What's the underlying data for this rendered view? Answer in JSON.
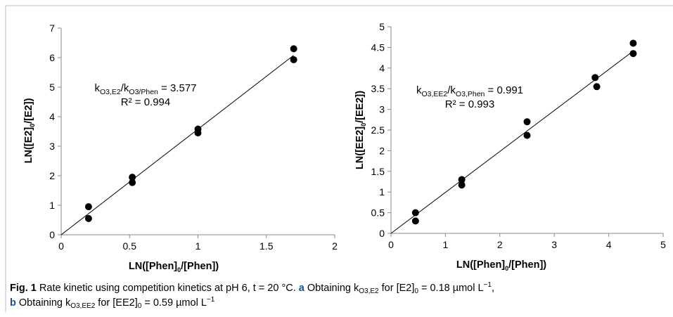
{
  "chart_data": [
    {
      "type": "scatter",
      "xlabel": "LN([Phen]0/[Phen])",
      "ylabel": "LN([E2]0/[E2])",
      "xlim": [
        0,
        2
      ],
      "ylim": [
        0,
        7
      ],
      "xticks": [
        0,
        0.5,
        1,
        1.5,
        2
      ],
      "yticks": [
        0,
        1,
        2,
        3,
        4,
        5,
        6,
        7
      ],
      "points": [
        [
          0.2,
          0.95
        ],
        [
          0.2,
          0.55
        ],
        [
          0.52,
          1.95
        ],
        [
          0.52,
          1.77
        ],
        [
          1.0,
          3.58
        ],
        [
          1.0,
          3.45
        ],
        [
          1.7,
          6.3
        ],
        [
          1.7,
          5.93
        ]
      ],
      "fit": {
        "slope": 3.577,
        "x": [
          0,
          1.7
        ]
      },
      "annotation": {
        "k_main": "k",
        "k_sub": "O3,E2",
        "sep": "/k",
        "k2_sub": "O3/Phen",
        "value": " = 3.577",
        "r2": "R² = 0.994"
      },
      "grid": false
    },
    {
      "type": "scatter",
      "xlabel": "LN([Phen]0/[Phen])",
      "ylabel": "LN([EE2]0/[EE2])",
      "xlim": [
        0,
        5
      ],
      "ylim": [
        0,
        5
      ],
      "xticks": [
        0,
        1,
        2,
        3,
        4,
        5
      ],
      "yticks": [
        0,
        0.5,
        1,
        1.5,
        2,
        2.5,
        3,
        3.5,
        4,
        4.5,
        5
      ],
      "points": [
        [
          0.45,
          0.5
        ],
        [
          0.45,
          0.3
        ],
        [
          1.3,
          1.3
        ],
        [
          1.3,
          1.17
        ],
        [
          2.5,
          2.7
        ],
        [
          2.5,
          2.37
        ],
        [
          3.75,
          3.77
        ],
        [
          3.78,
          3.55
        ],
        [
          4.45,
          4.6
        ],
        [
          4.45,
          4.35
        ]
      ],
      "fit": {
        "slope": 0.991,
        "x": [
          0,
          4.45
        ]
      },
      "annotation": {
        "k_main": "k",
        "k_sub": "O3,EE2",
        "sep": "/k",
        "k2_sub": "O3,Phen",
        "value": " = 0.991",
        "r2": "R² = 0.993"
      },
      "grid": false
    }
  ],
  "caption": {
    "fig_label": "Fig. 1",
    "text1": " Rate kinetic using competition kinetics at pH 6, t = 20 °C. ",
    "a_label": "a",
    "text_a": " Obtaining k",
    "sub_a": "O3,E2",
    "text_a2": " for [E2]",
    "sub_a0": "0",
    "text_a3": " = 0.18 µmol L",
    "sup_a": "−1",
    "sep": ",",
    "b_label": "b",
    "text_b": " Obtaining k",
    "sub_b": "O3,EE2",
    "text_b2": " for [EE2]",
    "sub_b0": "0",
    "text_b3": " = 0.59 µmol L",
    "sup_b": "−1"
  },
  "colors": {
    "marker": "#000000",
    "axis": "#8a8a8a",
    "fit": "#000000",
    "label_blue": "#1f4e8c"
  }
}
